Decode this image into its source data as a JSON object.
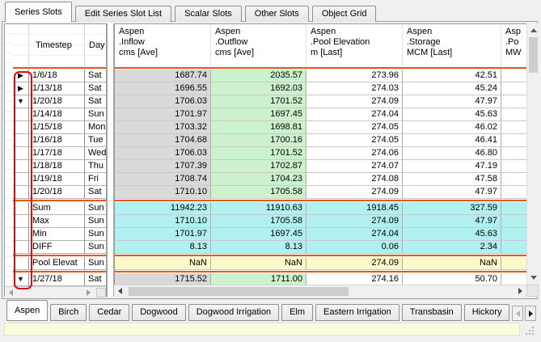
{
  "colors": {
    "separator_orange": "#e6570f",
    "row_gray": "#d9d9d9",
    "row_green": "#ccf2cc",
    "row_cyan": "#b0f0f0",
    "row_yellow": "#fafac8",
    "annotation_red": "#dd0c0c",
    "status_strip_yellow": "#fbfbdf",
    "indicator_white": "#ffffff",
    "indicator_gray": "#e4e4e4"
  },
  "icons": {
    "collapsed": "▶",
    "expanded": "▼"
  },
  "top_tabs": [
    {
      "label": "Series Slots",
      "active": true
    },
    {
      "label": "Edit Series Slot List",
      "active": false
    },
    {
      "label": "Scalar Slots",
      "active": false
    },
    {
      "label": "Other Slots",
      "active": false
    },
    {
      "label": "Object Grid",
      "active": false
    }
  ],
  "grid": {
    "left_headers": {
      "timestep": "Timestep",
      "day": "Day"
    },
    "columns": [
      {
        "title_lines": [
          "Aspen",
          ".Inflow",
          "cms [Ave]"
        ]
      },
      {
        "title_lines": [
          "Aspen",
          ".Outflow",
          "cms [Ave]"
        ]
      },
      {
        "title_lines": [
          "Aspen",
          ".Pool Elevation",
          "m [Last]"
        ]
      },
      {
        "title_lines": [
          "Aspen",
          ".Storage",
          "MCM [Last]"
        ]
      },
      {
        "title_lines": [
          "Asp",
          ".Po",
          "MW"
        ]
      }
    ],
    "data_rows": [
      {
        "arrow": "collapsed",
        "timestep": "1/6/18",
        "day": "Sat",
        "values": [
          "1687.74",
          "2035.57",
          "273.96",
          "42.51"
        ]
      },
      {
        "arrow": "collapsed",
        "timestep": "1/13/18",
        "day": "Sat",
        "values": [
          "1696.55",
          "1692.03",
          "274.03",
          "45.24"
        ]
      },
      {
        "arrow": "expanded",
        "timestep": "1/20/18",
        "day": "Sat",
        "values": [
          "1706.03",
          "1701.52",
          "274.09",
          "47.97"
        ]
      },
      {
        "arrow": "",
        "timestep": "1/14/18",
        "day": "Sun",
        "values": [
          "1701.97",
          "1697.45",
          "274.04",
          "45.63"
        ]
      },
      {
        "arrow": "",
        "timestep": "1/15/18",
        "day": "Mon",
        "values": [
          "1703.32",
          "1698.81",
          "274.05",
          "46.02"
        ]
      },
      {
        "arrow": "",
        "timestep": "1/16/18",
        "day": "Tue",
        "values": [
          "1704.68",
          "1700.16",
          "274.05",
          "46.41"
        ]
      },
      {
        "arrow": "",
        "timestep": "1/17/18",
        "day": "Wed",
        "values": [
          "1706.03",
          "1701.52",
          "274.06",
          "46.80"
        ]
      },
      {
        "arrow": "",
        "timestep": "1/18/18",
        "day": "Thu",
        "values": [
          "1707.39",
          "1702.87",
          "274.07",
          "47.19"
        ]
      },
      {
        "arrow": "",
        "timestep": "1/19/18",
        "day": "Fri",
        "values": [
          "1708.74",
          "1704.23",
          "274.08",
          "47.58"
        ]
      },
      {
        "arrow": "",
        "timestep": "1/20/18",
        "day": "Sat",
        "values": [
          "1710.10",
          "1705.58",
          "274.09",
          "47.97"
        ]
      }
    ],
    "stat_rows": [
      {
        "label": "Sum",
        "day": "Sun",
        "values": [
          "11942.23",
          "11910.63",
          "1918.45",
          "327.59"
        ]
      },
      {
        "label": "Max",
        "day": "Sun",
        "values": [
          "1710.10",
          "1705.58",
          "274.09",
          "47.97"
        ]
      },
      {
        "label": "Min",
        "day": "Sun",
        "values": [
          "1701.97",
          "1697.45",
          "274.04",
          "45.63"
        ]
      },
      {
        "label": "DIFF",
        "day": "Sun",
        "values": [
          "8.13",
          "8.13",
          "0.06",
          "2.34"
        ]
      }
    ],
    "pool_row": {
      "label": "Pool Elevat",
      "day": "Sun",
      "values": [
        "NaN",
        "NaN",
        "274.09",
        "NaN"
      ]
    },
    "last_row": {
      "arrow": "expanded",
      "timestep": "1/27/18",
      "day": "Sat",
      "values": [
        "1715.52",
        "1711.00",
        "274.16",
        "50.70"
      ]
    }
  },
  "bottom_tabs": [
    {
      "label": "Aspen",
      "active": true
    },
    {
      "label": "Birch",
      "active": false
    },
    {
      "label": "Cedar",
      "active": false
    },
    {
      "label": "Dogwood",
      "active": false
    },
    {
      "label": "Dogwood Irrigation",
      "active": false
    },
    {
      "label": "Elm",
      "active": false
    },
    {
      "label": "Eastern Irrigation",
      "active": false
    },
    {
      "label": "Transbasin",
      "active": false
    },
    {
      "label": "Hickory",
      "active": false
    }
  ]
}
